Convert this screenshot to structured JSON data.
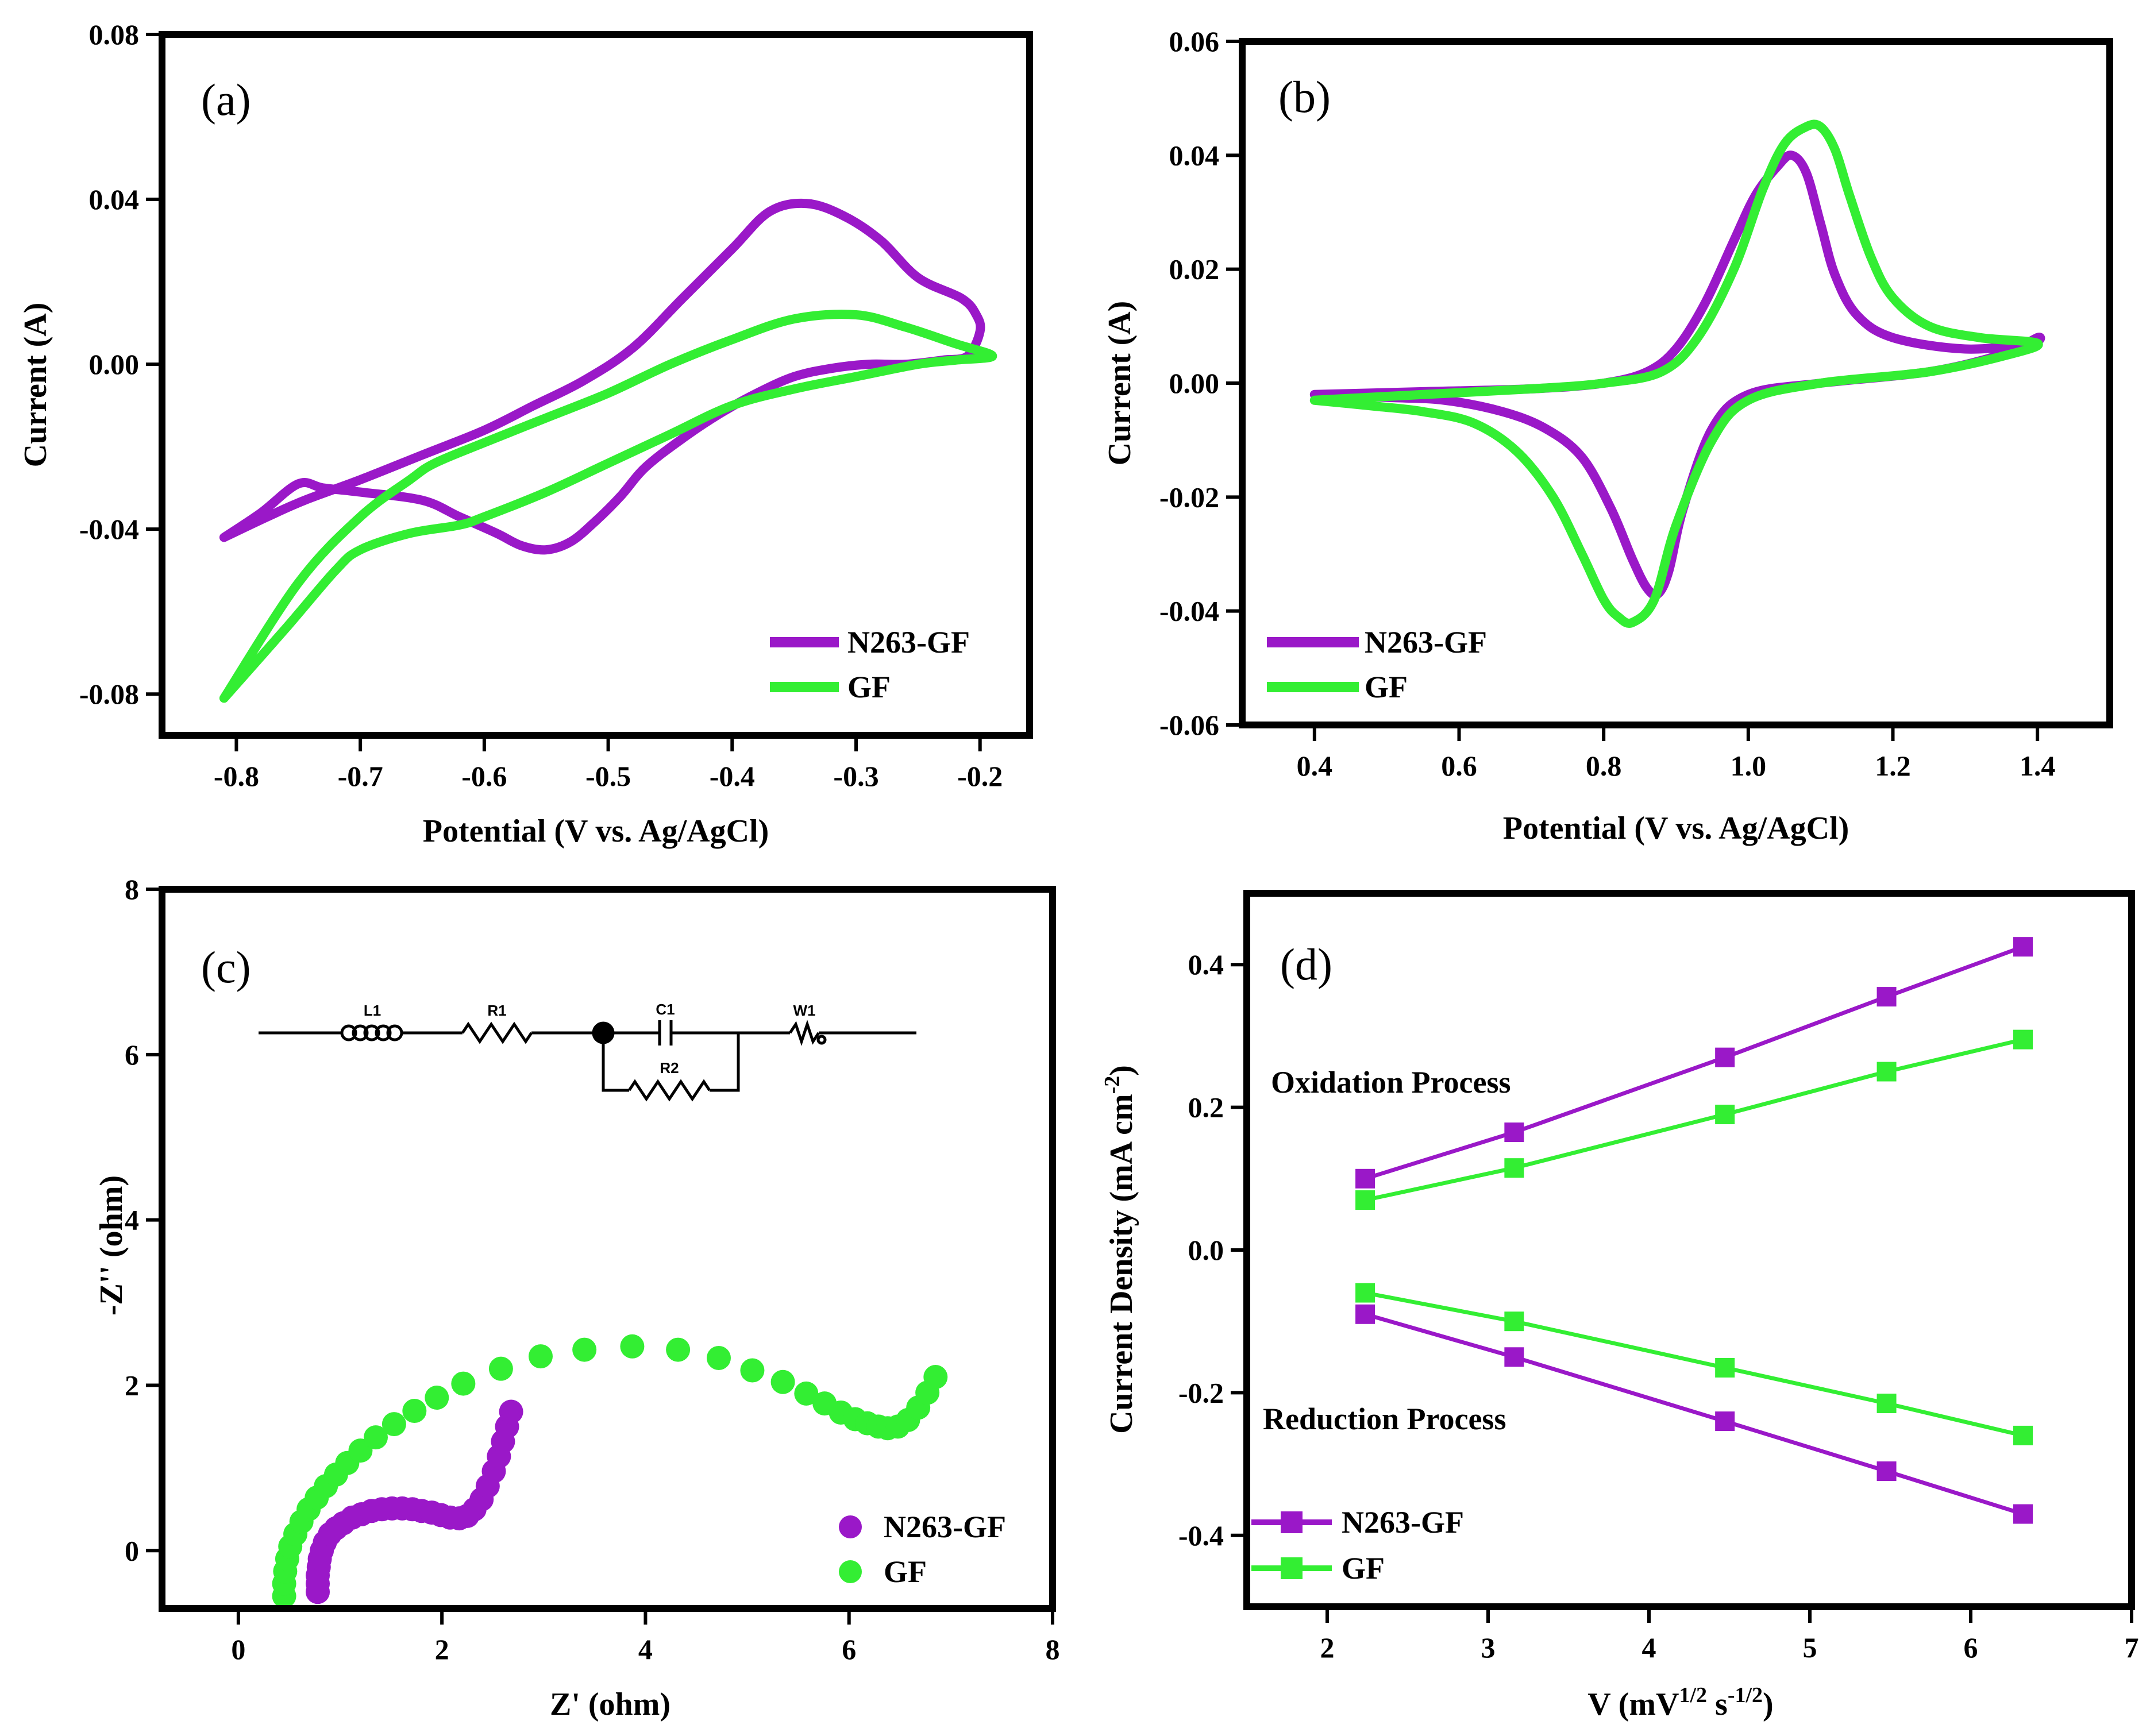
{
  "colors": {
    "n263": "#9a18c8",
    "gf": "#33ee33",
    "axis": "#000000"
  },
  "chart_data": [
    {
      "id": "a",
      "type": "line",
      "panel_label": "(a)",
      "xlabel": "Potential (V vs. Ag/AgCl)",
      "ylabel": "Current (A)",
      "xlim": [
        -0.86,
        -0.16
      ],
      "ylim": [
        -0.09,
        0.08
      ],
      "x_ticks": [
        -0.8,
        -0.7,
        -0.6,
        -0.5,
        -0.4,
        -0.3,
        -0.2
      ],
      "x_tick_labels": [
        "-0.8",
        "-0.7",
        "-0.6",
        "-0.5",
        "-0.4",
        "-0.3",
        "-0.2"
      ],
      "y_ticks": [
        -0.08,
        -0.04,
        0.0,
        0.04,
        0.08
      ],
      "y_tick_labels": [
        "-0.08",
        "-0.04",
        "0.00",
        "0.04",
        "0.08"
      ],
      "legend_position": "bottom-right",
      "series": [
        {
          "name": "N263-GF",
          "color_key": "n263",
          "x": [
            -0.81,
            -0.78,
            -0.75,
            -0.73,
            -0.7,
            -0.65,
            -0.62,
            -0.59,
            -0.57,
            -0.55,
            -0.53,
            -0.51,
            -0.49,
            -0.47,
            -0.44,
            -0.41,
            -0.38,
            -0.35,
            -0.32,
            -0.29,
            -0.26,
            -0.23,
            -0.21,
            -0.2,
            -0.203,
            -0.215,
            -0.25,
            -0.28,
            -0.31,
            -0.34,
            -0.37,
            -0.4,
            -0.44,
            -0.48,
            -0.52,
            -0.56,
            -0.6,
            -0.65,
            -0.7,
            -0.745,
            -0.775,
            -0.81
          ],
          "y": [
            -0.042,
            -0.036,
            -0.029,
            -0.03,
            -0.031,
            -0.033,
            -0.037,
            -0.041,
            -0.044,
            -0.045,
            -0.043,
            -0.038,
            -0.032,
            -0.025,
            -0.018,
            -0.012,
            -0.007,
            -0.003,
            -0.001,
            0.0,
            0.0,
            0.001,
            0.002,
            0.008,
            0.012,
            0.016,
            0.021,
            0.03,
            0.036,
            0.039,
            0.037,
            0.028,
            0.016,
            0.004,
            -0.004,
            -0.01,
            -0.016,
            -0.022,
            -0.028,
            -0.033,
            -0.037,
            -0.042
          ]
        },
        {
          "name": "GF",
          "color_key": "gf",
          "x": [
            -0.81,
            -0.76,
            -0.72,
            -0.7,
            -0.66,
            -0.62,
            -0.6,
            -0.55,
            -0.5,
            -0.45,
            -0.4,
            -0.35,
            -0.3,
            -0.25,
            -0.22,
            -0.19,
            -0.22,
            -0.26,
            -0.3,
            -0.35,
            -0.4,
            -0.45,
            -0.5,
            -0.55,
            -0.6,
            -0.64,
            -0.66,
            -0.7,
            -0.75,
            -0.81
          ],
          "y": [
            -0.081,
            -0.064,
            -0.05,
            -0.045,
            -0.041,
            -0.039,
            -0.037,
            -0.031,
            -0.024,
            -0.017,
            -0.01,
            -0.006,
            -0.003,
            0.0,
            0.001,
            0.002,
            0.005,
            0.009,
            0.012,
            0.011,
            0.006,
            0.0,
            -0.007,
            -0.013,
            -0.019,
            -0.024,
            -0.028,
            -0.037,
            -0.053,
            -0.081
          ]
        }
      ]
    },
    {
      "id": "b",
      "type": "line",
      "panel_label": "(b)",
      "xlabel": "Potential (V vs. Ag/AgCl)",
      "ylabel": "Current (A)",
      "xlim": [
        0.3,
        1.5
      ],
      "ylim": [
        -0.06,
        0.06
      ],
      "x_ticks": [
        0.4,
        0.6,
        0.8,
        1.0,
        1.2,
        1.4
      ],
      "x_tick_labels": [
        "0.4",
        "0.6",
        "0.8",
        "1.0",
        "1.2",
        "1.4"
      ],
      "y_ticks": [
        -0.06,
        -0.04,
        -0.02,
        0.0,
        0.02,
        0.04,
        0.06
      ],
      "y_tick_labels": [
        "-0.06",
        "-0.04",
        "-0.02",
        "0.00",
        "0.02",
        "0.04",
        "0.06"
      ],
      "legend_position": "bottom-left",
      "series": [
        {
          "name": "N263-GF",
          "color_key": "n263",
          "x": [
            0.4,
            0.55,
            0.7,
            0.8,
            0.86,
            0.9,
            0.94,
            0.98,
            1.01,
            1.04,
            1.06,
            1.08,
            1.1,
            1.12,
            1.15,
            1.2,
            1.3,
            1.39,
            1.4,
            1.35,
            1.25,
            1.1,
            1.0,
            0.95,
            0.91,
            0.89,
            0.875,
            0.86,
            0.84,
            0.81,
            0.77,
            0.72,
            0.66,
            0.58,
            0.5,
            0.4
          ],
          "y": [
            -0.002,
            -0.0015,
            -0.001,
            0.0,
            0.002,
            0.006,
            0.014,
            0.025,
            0.033,
            0.038,
            0.04,
            0.037,
            0.028,
            0.019,
            0.012,
            0.008,
            0.006,
            0.007,
            0.008,
            0.005,
            0.002,
            0.0,
            -0.002,
            -0.008,
            -0.022,
            -0.033,
            -0.037,
            -0.036,
            -0.031,
            -0.022,
            -0.013,
            -0.008,
            -0.005,
            -0.003,
            -0.0025,
            -0.002
          ]
        },
        {
          "name": "GF",
          "color_key": "gf",
          "x": [
            0.4,
            0.55,
            0.7,
            0.8,
            0.88,
            0.93,
            0.98,
            1.02,
            1.05,
            1.08,
            1.1,
            1.12,
            1.14,
            1.17,
            1.2,
            1.25,
            1.32,
            1.4,
            1.36,
            1.25,
            1.1,
            1.0,
            0.95,
            0.9,
            0.87,
            0.84,
            0.82,
            0.8,
            0.77,
            0.73,
            0.68,
            0.62,
            0.55,
            0.48,
            0.4
          ],
          "y": [
            -0.003,
            -0.002,
            -0.001,
            0.0,
            0.002,
            0.008,
            0.02,
            0.034,
            0.042,
            0.045,
            0.045,
            0.041,
            0.033,
            0.022,
            0.015,
            0.01,
            0.008,
            0.007,
            0.005,
            0.002,
            0.0,
            -0.003,
            -0.01,
            -0.025,
            -0.038,
            -0.042,
            -0.041,
            -0.038,
            -0.03,
            -0.02,
            -0.012,
            -0.007,
            -0.005,
            -0.004,
            -0.003
          ]
        }
      ]
    },
    {
      "id": "c",
      "type": "scatter",
      "panel_label": "(c)",
      "xlabel": "Z' (ohm)",
      "ylabel": "-Z'' (ohm)",
      "xlim": [
        -0.75,
        8.0
      ],
      "ylim": [
        -0.7,
        8.0
      ],
      "x_ticks": [
        0,
        2,
        4,
        6,
        8
      ],
      "x_tick_labels": [
        "0",
        "2",
        "4",
        "6",
        "8"
      ],
      "y_ticks": [
        0,
        2,
        4,
        6,
        8
      ],
      "y_tick_labels": [
        "0",
        "2",
        "4",
        "6",
        "8"
      ],
      "legend_position": "bottom-right",
      "series": [
        {
          "name": "N263-GF",
          "color_key": "n263",
          "x": [
            0.78,
            0.78,
            0.78,
            0.79,
            0.8,
            0.82,
            0.85,
            0.9,
            0.96,
            1.03,
            1.12,
            1.21,
            1.31,
            1.41,
            1.51,
            1.61,
            1.71,
            1.8,
            1.9,
            1.99,
            2.08,
            2.17,
            2.25,
            2.32,
            2.39,
            2.45,
            2.51,
            2.56,
            2.6,
            2.64,
            2.68
          ],
          "y": [
            -0.5,
            -0.4,
            -0.3,
            -0.2,
            -0.1,
            0.0,
            0.1,
            0.2,
            0.27,
            0.33,
            0.4,
            0.44,
            0.48,
            0.5,
            0.51,
            0.51,
            0.5,
            0.48,
            0.46,
            0.43,
            0.4,
            0.39,
            0.42,
            0.5,
            0.62,
            0.78,
            0.96,
            1.14,
            1.32,
            1.5,
            1.68
          ]
        },
        {
          "name": "GF",
          "color_key": "gf",
          "x": [
            0.45,
            0.45,
            0.46,
            0.48,
            0.51,
            0.56,
            0.62,
            0.69,
            0.77,
            0.86,
            0.96,
            1.07,
            1.2,
            1.35,
            1.53,
            1.73,
            1.95,
            2.21,
            2.58,
            2.97,
            3.4,
            3.87,
            4.32,
            4.72,
            5.05,
            5.35,
            5.58,
            5.76,
            5.92,
            6.06,
            6.18,
            6.29,
            6.38,
            6.48,
            6.58,
            6.68,
            6.77,
            6.85
          ],
          "y": [
            -0.55,
            -0.4,
            -0.25,
            -0.1,
            0.05,
            0.2,
            0.35,
            0.5,
            0.64,
            0.78,
            0.92,
            1.06,
            1.21,
            1.37,
            1.53,
            1.69,
            1.85,
            2.02,
            2.2,
            2.35,
            2.43,
            2.47,
            2.43,
            2.33,
            2.18,
            2.04,
            1.9,
            1.78,
            1.67,
            1.59,
            1.54,
            1.5,
            1.48,
            1.5,
            1.58,
            1.73,
            1.91,
            2.1
          ]
        }
      ],
      "circuit": {
        "labels": [
          "L1",
          "R1",
          "C1",
          "R2",
          "W1"
        ]
      }
    },
    {
      "id": "d",
      "type": "line",
      "panel_label": "(d)",
      "xlabel": "V (mV",
      "xlabel_sup1": "1/2",
      "xlabel_mid": " s",
      "xlabel_sup2": "-1/2",
      "xlabel_end": ")",
      "ylabel": "Current Density (mA cm",
      "ylabel_sup": "-2",
      "ylabel_end": ")",
      "xlim": [
        1.5,
        7.0
      ],
      "ylim": [
        -0.5,
        0.5
      ],
      "x_ticks": [
        2,
        3,
        4,
        5,
        6,
        7
      ],
      "x_tick_labels": [
        "2",
        "3",
        "4",
        "5",
        "6",
        "7"
      ],
      "y_ticks": [
        -0.4,
        -0.2,
        0.0,
        0.2,
        0.4
      ],
      "y_tick_labels": [
        "-0.4",
        "-0.2",
        "0.0",
        "0.2",
        "0.4"
      ],
      "legend_position": "bottom-left",
      "annotations": [
        "Oxidation Process",
        "Reduction Process"
      ],
      "series": [
        {
          "name": "N263-GF",
          "color_key": "n263",
          "group": "oxidation",
          "x": [
            2.236,
            3.162,
            4.472,
            5.477,
            6.325
          ],
          "y": [
            0.1,
            0.165,
            0.27,
            0.355,
            0.425
          ]
        },
        {
          "name": "GF",
          "color_key": "gf",
          "group": "oxidation",
          "x": [
            2.236,
            3.162,
            4.472,
            5.477,
            6.325
          ],
          "y": [
            0.07,
            0.115,
            0.19,
            0.25,
            0.295
          ]
        },
        {
          "name": "N263-GF",
          "color_key": "n263",
          "group": "reduction",
          "x": [
            2.236,
            3.162,
            4.472,
            5.477,
            6.325
          ],
          "y": [
            -0.09,
            -0.15,
            -0.24,
            -0.31,
            -0.37
          ]
        },
        {
          "name": "GF",
          "color_key": "gf",
          "group": "reduction",
          "x": [
            2.236,
            3.162,
            4.472,
            5.477,
            6.325
          ],
          "y": [
            -0.06,
            -0.1,
            -0.165,
            -0.215,
            -0.26
          ]
        }
      ]
    }
  ]
}
